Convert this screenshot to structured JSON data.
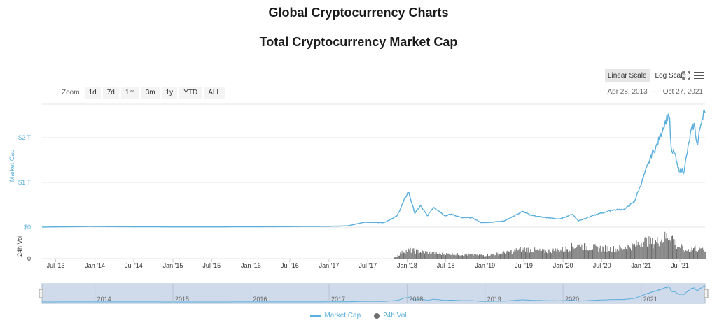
{
  "header": {
    "page_title": "Global Cryptocurrency Charts",
    "chart_title": "Total Cryptocurrency Market Cap"
  },
  "toolbar": {
    "linear_scale": "Linear Scale",
    "log_scale": "Log Scale",
    "zoom_label": "Zoom",
    "zoom_options": [
      "1d",
      "7d",
      "1m",
      "3m",
      "1y",
      "YTD",
      "ALL"
    ],
    "date_from": "Apr 28, 2013",
    "date_sep": "—",
    "date_to": "Oct 27, 2021"
  },
  "colors": {
    "market_cap": "#5aafdc",
    "volume": "#6e6e6e",
    "navigator_fill": "#cfdaea"
  },
  "chart_data": {
    "type": "area",
    "title": "Total Cryptocurrency Market Cap",
    "xlabel": "",
    "ylabel": "Market Cap",
    "ylabel_volume": "24h Vol",
    "x_range": [
      "2013-04-28",
      "2021-10-27"
    ],
    "ylim": [
      0,
      2.75
    ],
    "yticks": [
      0,
      1,
      2
    ],
    "ytick_labels": [
      "$0",
      "$1 T",
      "$2 T"
    ],
    "volume_tick_labels": [
      "0"
    ],
    "xtick_labels": [
      "Jul '13",
      "Jan '14",
      "Jul '14",
      "Jan '15",
      "Jul '15",
      "Jan '16",
      "Jul '16",
      "Jan '17",
      "Jul '17",
      "Jan '18",
      "Jul '18",
      "Jan '19",
      "Jul '19",
      "Jan '20",
      "Jul '20",
      "Jan '21",
      "Jul '21"
    ],
    "navigator_labels": [
      "2014",
      "2015",
      "2016",
      "2017",
      "2018",
      "2019",
      "2020",
      "2021"
    ],
    "legend": [
      "Market Cap",
      "24h Vol"
    ],
    "series": [
      {
        "name": "Market Cap",
        "unit": "trillion USD",
        "points": [
          [
            "2013-04-28",
            0.0015
          ],
          [
            "2013-12-04",
            0.014
          ],
          [
            "2014-06-01",
            0.009
          ],
          [
            "2015-01-15",
            0.004
          ],
          [
            "2015-08-01",
            0.0045
          ],
          [
            "2016-06-15",
            0.011
          ],
          [
            "2017-01-01",
            0.018
          ],
          [
            "2017-04-01",
            0.03
          ],
          [
            "2017-06-15",
            0.11
          ],
          [
            "2017-09-15",
            0.1
          ],
          [
            "2017-11-15",
            0.25
          ],
          [
            "2017-12-20",
            0.62
          ],
          [
            "2018-01-07",
            0.8
          ],
          [
            "2018-02-06",
            0.31
          ],
          [
            "2018-03-05",
            0.48
          ],
          [
            "2018-04-06",
            0.25
          ],
          [
            "2018-05-05",
            0.45
          ],
          [
            "2018-06-29",
            0.25
          ],
          [
            "2018-07-25",
            0.29
          ],
          [
            "2018-09-15",
            0.21
          ],
          [
            "2018-11-01",
            0.21
          ],
          [
            "2018-12-15",
            0.1
          ],
          [
            "2019-02-01",
            0.11
          ],
          [
            "2019-04-01",
            0.14
          ],
          [
            "2019-06-26",
            0.35
          ],
          [
            "2019-08-01",
            0.27
          ],
          [
            "2019-10-01",
            0.22
          ],
          [
            "2019-12-17",
            0.18
          ],
          [
            "2020-02-14",
            0.29
          ],
          [
            "2020-03-13",
            0.14
          ],
          [
            "2020-05-15",
            0.25
          ],
          [
            "2020-08-15",
            0.38
          ],
          [
            "2020-10-15",
            0.4
          ],
          [
            "2020-11-30",
            0.57
          ],
          [
            "2021-01-08",
            1.07
          ],
          [
            "2021-02-21",
            1.65
          ],
          [
            "2021-03-13",
            1.8
          ],
          [
            "2021-04-15",
            2.25
          ],
          [
            "2021-05-12",
            2.55
          ],
          [
            "2021-05-23",
            1.62
          ],
          [
            "2021-06-05",
            1.7
          ],
          [
            "2021-06-22",
            1.3
          ],
          [
            "2021-07-20",
            1.25
          ],
          [
            "2021-08-23",
            2.15
          ],
          [
            "2021-09-07",
            2.3
          ],
          [
            "2021-09-21",
            1.8
          ],
          [
            "2021-10-06",
            2.3
          ],
          [
            "2021-10-21",
            2.6
          ],
          [
            "2021-10-27",
            2.48
          ]
        ]
      },
      {
        "name": "24h Vol",
        "unit": "relative",
        "points": [
          [
            "2017-11-01",
            0.05
          ],
          [
            "2017-12-15",
            0.3
          ],
          [
            "2018-01-05",
            0.35
          ],
          [
            "2018-06-01",
            0.2
          ],
          [
            "2018-12-01",
            0.15
          ],
          [
            "2019-01-01",
            0.14
          ],
          [
            "2019-03-01",
            0.2
          ],
          [
            "2019-06-01",
            0.35
          ],
          [
            "2019-07-01",
            0.4
          ],
          [
            "2019-10-01",
            0.3
          ],
          [
            "2020-01-01",
            0.38
          ],
          [
            "2020-03-01",
            0.55
          ],
          [
            "2020-06-01",
            0.45
          ],
          [
            "2020-09-01",
            0.4
          ],
          [
            "2020-12-01",
            0.55
          ],
          [
            "2021-01-10",
            0.75
          ],
          [
            "2021-03-01",
            0.65
          ],
          [
            "2021-05-19",
            1.0
          ],
          [
            "2021-06-15",
            0.55
          ],
          [
            "2021-08-01",
            0.35
          ],
          [
            "2021-09-07",
            0.45
          ],
          [
            "2021-10-27",
            0.3
          ]
        ]
      }
    ]
  }
}
